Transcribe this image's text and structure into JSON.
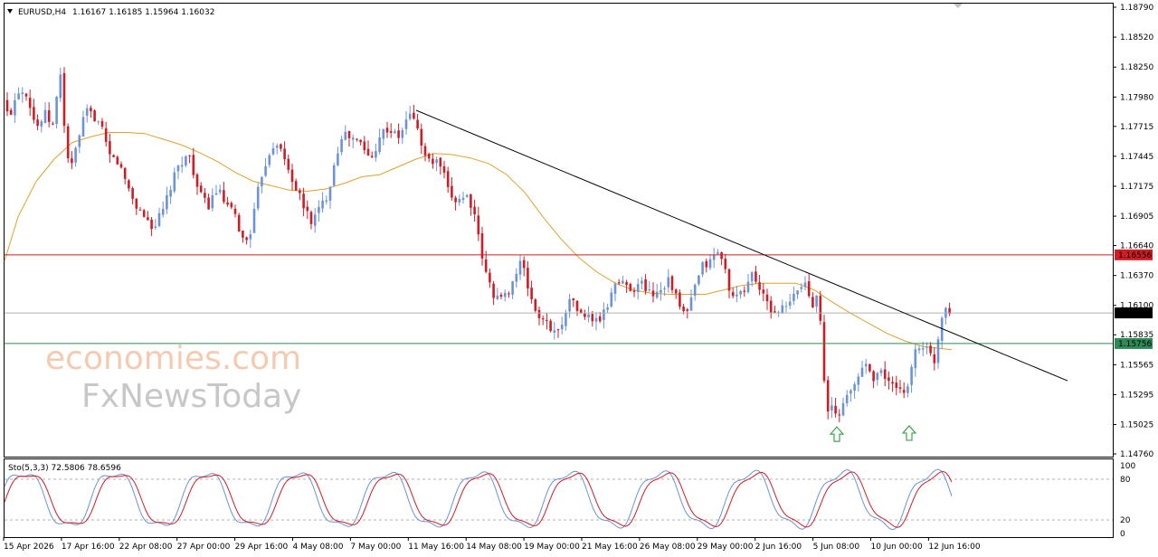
{
  "header": {
    "symbol": "EURUSD,H4",
    "ohlc": "1.16167 1.16185 1.15964 1.16032"
  },
  "indicator": {
    "label": "Sto(5,3,3) 72.5806 78.6596",
    "levels": [
      "100",
      "80",
      "20",
      "0"
    ]
  },
  "watermark": {
    "line1": "economies.com",
    "line2": "FxNewsToday"
  },
  "colors": {
    "bull": "#6b93d6",
    "bear": "#d01c24",
    "ma": "#e0a12c",
    "resistance": "#d01c24",
    "support": "#2e8b57",
    "trendline": "#000000",
    "arrow": "#3aa64a",
    "stoch_main": "#6b93d6",
    "stoch_signal": "#d01c24"
  },
  "chart_data": {
    "type": "candlestick",
    "instrument": "EURUSD",
    "timeframe": "H4",
    "y_ticks": [
      "1.18790",
      "1.18520",
      "1.18250",
      "1.17980",
      "1.17715",
      "1.17445",
      "1.17175",
      "1.16905",
      "1.16640",
      "1.16370",
      "1.16100",
      "1.15835",
      "1.15565",
      "1.15295",
      "1.15025",
      "1.14760"
    ],
    "ylim": [
      1.1476,
      1.1879
    ],
    "x_ticks": [
      "15 Apr 2026",
      "17 Apr 16:00",
      "22 Apr 08:00",
      "27 Apr 00:00",
      "29 Apr 16:00",
      "4 May 08:00",
      "7 May 00:00",
      "11 May 16:00",
      "14 May 08:00",
      "19 May 00:00",
      "21 May 16:00",
      "26 May 08:00",
      "29 May 00:00",
      "2 Jun 16:00",
      "5 Jun 08:00",
      "10 Jun 00:00",
      "12 Jun 16:00"
    ],
    "price_labels": {
      "resistance": "1.16556",
      "current": "1.16032",
      "support": "1.15756"
    },
    "levels": {
      "resistance": 1.16556,
      "support": 1.15756,
      "current": 1.16032
    },
    "close_path": [
      [
        0,
        1.1795
      ],
      [
        10,
        1.178
      ],
      [
        20,
        1.1805
      ],
      [
        30,
        1.1802
      ],
      [
        40,
        1.177
      ],
      [
        50,
        1.1782
      ],
      [
        60,
        1.177
      ],
      [
        66,
        1.183
      ],
      [
        72,
        1.176
      ],
      [
        78,
        1.173
      ],
      [
        85,
        1.1755
      ],
      [
        95,
        1.1785
      ],
      [
        105,
        1.178
      ],
      [
        112,
        1.177
      ],
      [
        120,
        1.1745
      ],
      [
        130,
        1.174
      ],
      [
        140,
        1.172
      ],
      [
        150,
        1.17
      ],
      [
        160,
        1.169
      ],
      [
        170,
        1.168
      ],
      [
        180,
        1.1695
      ],
      [
        190,
        1.172
      ],
      [
        200,
        1.174
      ],
      [
        210,
        1.1745
      ],
      [
        220,
        1.171
      ],
      [
        230,
        1.17
      ],
      [
        240,
        1.1715
      ],
      [
        250,
        1.17
      ],
      [
        260,
        1.169
      ],
      [
        270,
        1.1665
      ],
      [
        278,
        1.168
      ],
      [
        288,
        1.1725
      ],
      [
        296,
        1.1745
      ],
      [
        305,
        1.176
      ],
      [
        315,
        1.174
      ],
      [
        325,
        1.172
      ],
      [
        335,
        1.17
      ],
      [
        345,
        1.1685
      ],
      [
        355,
        1.17
      ],
      [
        362,
        1.171
      ],
      [
        370,
        1.174
      ],
      [
        378,
        1.1765
      ],
      [
        390,
        1.176
      ],
      [
        400,
        1.1755
      ],
      [
        410,
        1.174
      ],
      [
        420,
        1.1765
      ],
      [
        430,
        1.177
      ],
      [
        440,
        1.176
      ],
      [
        448,
        1.1775
      ],
      [
        456,
        1.1785
      ],
      [
        464,
        1.176
      ],
      [
        472,
        1.174
      ],
      [
        480,
        1.174
      ],
      [
        488,
        1.1735
      ],
      [
        496,
        1.171
      ],
      [
        505,
        1.1705
      ],
      [
        515,
        1.171
      ],
      [
        522,
        1.17
      ],
      [
        530,
        1.1665
      ],
      [
        538,
        1.1635
      ],
      [
        546,
        1.162
      ],
      [
        556,
        1.1615
      ],
      [
        566,
        1.163
      ],
      [
        576,
        1.165
      ],
      [
        584,
        1.1625
      ],
      [
        592,
        1.1605
      ],
      [
        600,
        1.1595
      ],
      [
        610,
        1.159
      ],
      [
        618,
        1.1585
      ],
      [
        626,
        1.161
      ],
      [
        634,
        1.1615
      ],
      [
        642,
        1.16
      ],
      [
        650,
        1.16
      ],
      [
        660,
        1.1595
      ],
      [
        670,
        1.1605
      ],
      [
        678,
        1.163
      ],
      [
        690,
        1.163
      ],
      [
        700,
        1.1625
      ],
      [
        710,
        1.163
      ],
      [
        720,
        1.162
      ],
      [
        730,
        1.1625
      ],
      [
        740,
        1.1635
      ],
      [
        750,
        1.161
      ],
      [
        758,
        1.16
      ],
      [
        766,
        1.162
      ],
      [
        776,
        1.1645
      ],
      [
        786,
        1.165
      ],
      [
        794,
        1.166
      ],
      [
        802,
        1.164
      ],
      [
        810,
        1.1615
      ],
      [
        820,
        1.162
      ],
      [
        832,
        1.164
      ],
      [
        842,
        1.162
      ],
      [
        852,
        1.1605
      ],
      [
        862,
        1.1605
      ],
      [
        872,
        1.161
      ],
      [
        882,
        1.1625
      ],
      [
        890,
        1.163
      ],
      [
        898,
        1.161
      ],
      [
        905,
        1.163
      ],
      [
        909,
        1.156
      ],
      [
        914,
        1.151
      ],
      [
        920,
        1.152
      ],
      [
        926,
        1.1505
      ],
      [
        932,
        1.1525
      ],
      [
        940,
        1.153
      ],
      [
        948,
        1.1545
      ],
      [
        956,
        1.156
      ],
      [
        964,
        1.1545
      ],
      [
        972,
        1.155
      ],
      [
        980,
        1.1545
      ],
      [
        988,
        1.1535
      ],
      [
        996,
        1.153
      ],
      [
        1004,
        1.154
      ],
      [
        1012,
        1.157
      ],
      [
        1020,
        1.1575
      ],
      [
        1028,
        1.1565
      ],
      [
        1034,
        1.156
      ],
      [
        1040,
        1.16
      ],
      [
        1046,
        1.161
      ],
      [
        1052,
        1.1603
      ]
    ],
    "ma_path": [
      [
        5,
        1.165
      ],
      [
        20,
        1.169
      ],
      [
        40,
        1.1722
      ],
      [
        60,
        1.1742
      ],
      [
        80,
        1.1757
      ],
      [
        100,
        1.1762
      ],
      [
        120,
        1.1766
      ],
      [
        140,
        1.1766
      ],
      [
        160,
        1.1765
      ],
      [
        180,
        1.176
      ],
      [
        200,
        1.1755
      ],
      [
        220,
        1.1748
      ],
      [
        240,
        1.174
      ],
      [
        260,
        1.173
      ],
      [
        280,
        1.1722
      ],
      [
        300,
        1.1718
      ],
      [
        320,
        1.1714
      ],
      [
        340,
        1.1713
      ],
      [
        360,
        1.1715
      ],
      [
        380,
        1.172
      ],
      [
        400,
        1.1726
      ],
      [
        420,
        1.1728
      ],
      [
        440,
        1.1735
      ],
      [
        460,
        1.1742
      ],
      [
        480,
        1.1747
      ],
      [
        500,
        1.1746
      ],
      [
        520,
        1.1743
      ],
      [
        540,
        1.1738
      ],
      [
        560,
        1.1728
      ],
      [
        580,
        1.1712
      ],
      [
        600,
        1.169
      ],
      [
        620,
        1.167
      ],
      [
        640,
        1.1653
      ],
      [
        660,
        1.164
      ],
      [
        680,
        1.163
      ],
      [
        700,
        1.1624
      ],
      [
        720,
        1.1621
      ],
      [
        740,
        1.162
      ],
      [
        760,
        1.162
      ],
      [
        780,
        1.162
      ],
      [
        800,
        1.1624
      ],
      [
        820,
        1.1628
      ],
      [
        840,
        1.163
      ],
      [
        860,
        1.163
      ],
      [
        880,
        1.163
      ],
      [
        900,
        1.1624
      ],
      [
        920,
        1.1613
      ],
      [
        940,
        1.1603
      ],
      [
        960,
        1.1594
      ],
      [
        980,
        1.1585
      ],
      [
        1000,
        1.1578
      ],
      [
        1020,
        1.1573
      ],
      [
        1040,
        1.1571
      ],
      [
        1052,
        1.157
      ]
    ],
    "trendline": [
      [
        460,
        1.1786
      ],
      [
        1180,
        1.1542
      ]
    ],
    "stochastic": {
      "period": "5,3,3",
      "main": 72.5806,
      "signal": 78.6596,
      "ylim": [
        0,
        100
      ],
      "overbought": 80,
      "oversold": 20
    },
    "annotations": [
      {
        "type": "up-arrow",
        "x": 925,
        "price": 1.1493
      },
      {
        "type": "up-arrow",
        "x": 1005,
        "price": 1.1494
      }
    ]
  }
}
